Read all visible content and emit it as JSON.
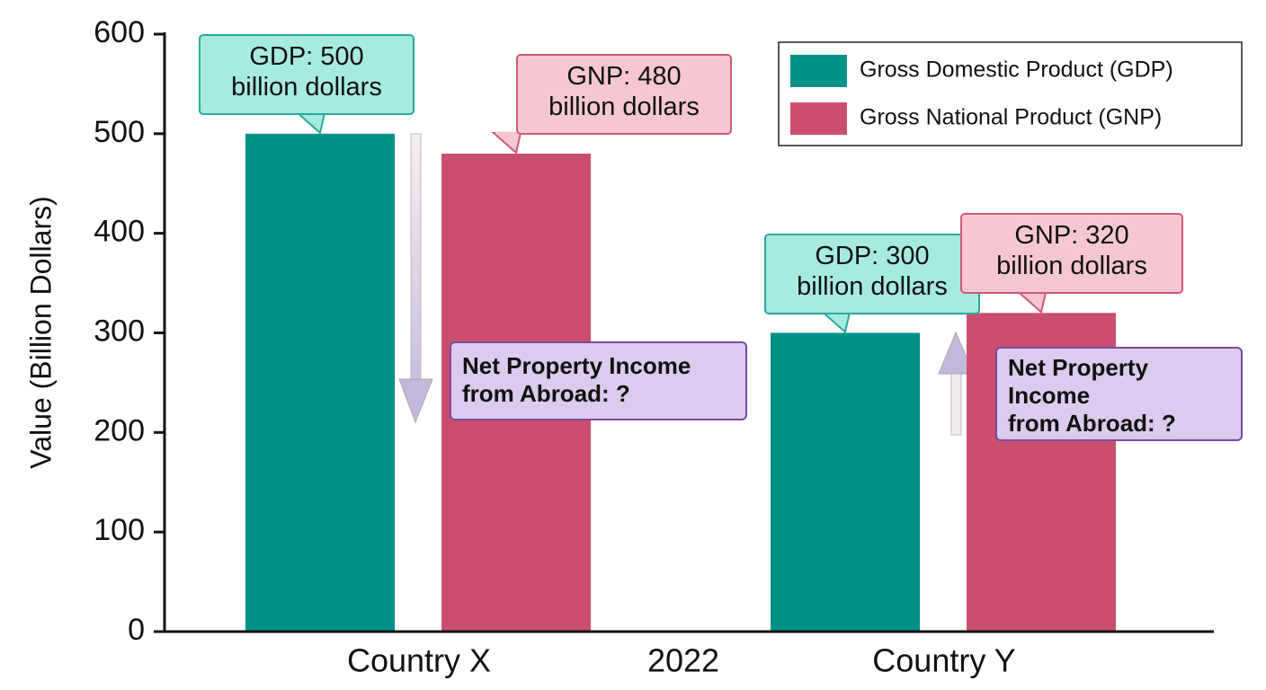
{
  "chart_data": {
    "type": "bar",
    "ylabel": "Value (Billion Dollars)",
    "xlabel": "2022",
    "categories": [
      "Country X",
      "Country Y"
    ],
    "series": [
      {
        "name": "Gross Domestic Product (GDP)",
        "color": "#00918a",
        "values": [
          500,
          300
        ],
        "value_labels": [
          "GDP: 500\nbillion dollars",
          "GDP: 300\nbillion dollars"
        ]
      },
      {
        "name": "Gross National Product (GNP)",
        "color": "#cc4e6e",
        "values": [
          480,
          320
        ],
        "value_labels": [
          "GNP: 480\nbillion dollars",
          "GNP: 320\nbillion dollars"
        ]
      }
    ],
    "annotations": [
      "Net Property Income\nfrom Abroad: ?",
      "Net Property\nIncome\nfrom Abroad: ?"
    ],
    "ylim": [
      0,
      600
    ],
    "yticks": [
      0,
      100,
      200,
      300,
      400,
      500,
      600
    ],
    "legend": "upper right"
  }
}
